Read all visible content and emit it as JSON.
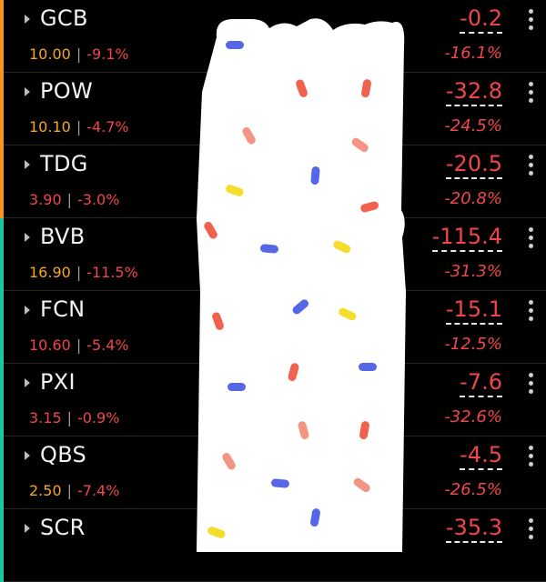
{
  "colors": {
    "up_accent": "#f7941d",
    "down_accent": "#19c6a0",
    "price": "#f5a623",
    "negative": "#f0464a"
  },
  "rows": [
    {
      "symbol": "GCB",
      "price": "10.00",
      "change_pct": "-9.1%",
      "value": "-0.2",
      "value_pct": "-16.1%",
      "accent": "#f7941d"
    },
    {
      "symbol": "POW",
      "price": "10.10",
      "change_pct": "-4.7%",
      "value": "-32.8",
      "value_pct": "-24.5%",
      "accent": "#f7941d"
    },
    {
      "symbol": "TDG",
      "price": "3.90",
      "change_pct": "-3.0%",
      "value": "-20.5",
      "value_pct": "-20.8%",
      "accent": "#f7941d"
    },
    {
      "symbol": "BVB",
      "price": "16.90",
      "change_pct": "-11.5%",
      "value": "-115.4",
      "value_pct": "-31.3%",
      "accent": "#19c6a0"
    },
    {
      "symbol": "FCN",
      "price": "10.60",
      "change_pct": "-5.4%",
      "value": "-15.1",
      "value_pct": "-12.5%",
      "accent": "#19c6a0"
    },
    {
      "symbol": "PXI",
      "price": "3.15",
      "change_pct": "-0.9%",
      "value": "-7.6",
      "value_pct": "-32.6%",
      "accent": "#19c6a0"
    },
    {
      "symbol": "QBS",
      "price": "2.50",
      "change_pct": "-7.4%",
      "value": "-4.5",
      "value_pct": "-26.5%",
      "accent": "#19c6a0"
    },
    {
      "symbol": "SCR",
      "price": "",
      "change_pct": "",
      "value": "-35.3",
      "value_pct": "",
      "accent": "#19c6a0"
    }
  ]
}
